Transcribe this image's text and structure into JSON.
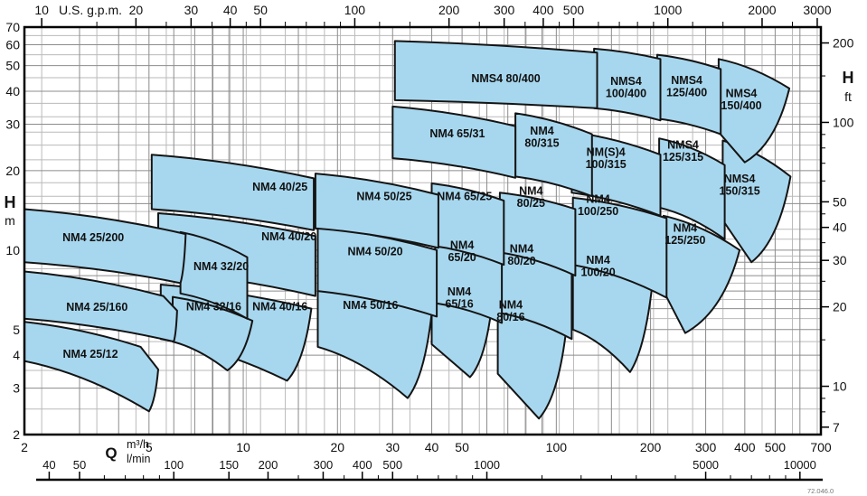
{
  "footer": {
    "doc_number": "72.046.0"
  },
  "chart_data": {
    "type": "area",
    "description": "Pump selection coverage chart, NM4 / NMS4 series, head H vs flow Q, log-log scales",
    "colors": {
      "region_fill": "#a7d7ee",
      "region_stroke": "#141414",
      "grid_light": "#bababa",
      "grid_med": "#8c8c8c",
      "frame": "#000000",
      "text": "#111111"
    },
    "axes": {
      "top_gpm": {
        "unit": "U.S. g.p.m.",
        "major": [
          10,
          20,
          30,
          40,
          50,
          100,
          200,
          300,
          400,
          500,
          1000,
          2000,
          3000
        ],
        "minor": [
          15,
          25,
          35,
          45,
          60,
          70,
          80,
          90,
          120,
          150,
          250,
          350,
          450,
          600,
          700,
          800,
          900,
          1200,
          1500,
          2500
        ],
        "gpm_to_m3h": 0.2271247
      },
      "left_m": {
        "unit_main": "H",
        "unit_sub": "m",
        "ticks": [
          70,
          60,
          50,
          40,
          30,
          20,
          10,
          5,
          4,
          3,
          2
        ],
        "range": [
          2,
          70
        ]
      },
      "right_ft": {
        "unit_main": "H",
        "unit_sub": "ft",
        "major": [
          200,
          100,
          50,
          40,
          30,
          20,
          10,
          7
        ],
        "minor": [
          150,
          90,
          80,
          70,
          60,
          45,
          35,
          25,
          15,
          9,
          8
        ],
        "ft_to_m": 0.3048
      },
      "bottom_m3h": {
        "unit_main": "Q",
        "unit_sub": "m³/h",
        "ticks": [
          2,
          5,
          10,
          20,
          30,
          40,
          50,
          100,
          200,
          300,
          400,
          500,
          700
        ],
        "range": [
          2,
          700
        ]
      },
      "bottom_lmin": {
        "unit": "l/min",
        "major": [
          40,
          50,
          100,
          150,
          200,
          300,
          400,
          500,
          1000,
          5000,
          10000
        ],
        "minor": [
          60,
          70,
          80,
          90,
          250,
          350,
          450,
          600,
          700,
          800,
          900,
          1500,
          2000,
          2500,
          3000,
          4000,
          6000,
          7000,
          8000,
          9000
        ],
        "lmin_to_m3h": 0.06
      }
    },
    "grid": {
      "x_m3h_med": [
        2,
        3,
        4,
        5,
        6,
        7,
        8,
        9,
        10,
        15,
        20,
        30,
        40,
        50,
        60,
        70,
        80,
        90,
        100,
        150,
        200,
        300,
        400,
        500,
        600,
        700
      ],
      "y_m_med": [
        2,
        3,
        4,
        5,
        6,
        7,
        8,
        9,
        10,
        15,
        20,
        30,
        40,
        50,
        60,
        70
      ],
      "y_m_light": [
        2.5,
        3.5,
        4.5,
        5.5,
        6.5,
        7.5,
        8.5,
        9.5,
        11,
        12,
        14,
        16,
        18,
        22,
        25,
        28,
        32,
        36,
        45,
        55,
        65
      ]
    },
    "regions": [
      {
        "label": "NMS4 150/315",
        "lines": [
          "NMS4",
          "150/315"
        ],
        "pts": [
          [
            340,
            26
          ],
          [
            560,
            19
          ],
          [
            420,
            9.0
          ],
          [
            340,
            13
          ]
        ],
        "label_pos": [
          385,
          17.7
        ]
      },
      {
        "label": "NMS4 150/400",
        "lines": [
          "NMS4",
          "150/400"
        ],
        "pts": [
          [
            330,
            53
          ],
          [
            555,
            41
          ],
          [
            400,
            21.5
          ],
          [
            330,
            28
          ]
        ],
        "label_pos": [
          390,
          37.2
        ]
      },
      {
        "label": "NM4 125/250",
        "lines": [
          "NM4",
          "125/250"
        ],
        "pts": [
          [
            220,
            13.5
          ],
          [
            385,
            10
          ],
          [
            258,
            4.85
          ],
          [
            220,
            7
          ]
        ],
        "label_pos": [
          258,
          11.5
        ]
      },
      {
        "label": "NMS4 125/315",
        "lines": [
          "NMS4",
          "125/315"
        ],
        "pts": [
          [
            213,
            26.5
          ],
          [
            345,
            21
          ],
          [
            345,
            11
          ],
          [
            213,
            14.5
          ]
        ],
        "label_pos": [
          254,
          23.8
        ]
      },
      {
        "label": "NMS4 125/400",
        "lines": [
          "NMS4",
          "125/400"
        ],
        "pts": [
          [
            210,
            55
          ],
          [
            335,
            48.5
          ],
          [
            335,
            27.5
          ],
          [
            210,
            31.5
          ]
        ],
        "label_pos": [
          261,
          41.8
        ]
      },
      {
        "label": "NM4 100/20",
        "lines": [
          "NM4",
          "100/20"
        ],
        "pts": [
          [
            113,
            9.8
          ],
          [
            205,
            8.5
          ],
          [
            172,
            3.45
          ],
          [
            113,
            5.0
          ]
        ],
        "label_pos": [
          136,
          8.7
        ]
      },
      {
        "label": "NM4 100/250",
        "lines": [
          "NM4",
          "100/250"
        ],
        "pts": [
          [
            113,
            15.8
          ],
          [
            225,
            13.2
          ],
          [
            225,
            6.6
          ],
          [
            113,
            8.8
          ]
        ],
        "label_pos": [
          136,
          14.8
        ]
      },
      {
        "label": "NM(S)4 100/315",
        "lines": [
          "NM(S)4",
          "100/315"
        ],
        "pts": [
          [
            112,
            28
          ],
          [
            215,
            23
          ],
          [
            215,
            13.5
          ],
          [
            112,
            16.5
          ]
        ],
        "label_pos": [
          144,
          22.3
        ]
      },
      {
        "label": "NMS4 100/400",
        "lines": [
          "NMS4",
          "100/400"
        ],
        "pts": [
          [
            132,
            58
          ],
          [
            215,
            53
          ],
          [
            215,
            31
          ],
          [
            132,
            34.5
          ]
        ],
        "label_pos": [
          167,
          41.5
        ]
      },
      {
        "label": "NM4 80/16",
        "lines": [
          "NM4",
          "80/16"
        ],
        "pts": [
          [
            65,
            6.0
          ],
          [
            107,
            4.75
          ],
          [
            88,
            2.3
          ],
          [
            65,
            3.4
          ]
        ],
        "label_pos": [
          71.5,
          5.9
        ]
      },
      {
        "label": "NM4 80/20",
        "lines": [
          "NM4",
          "80/20"
        ],
        "pts": [
          [
            65,
            10.7
          ],
          [
            112,
            9.3
          ],
          [
            112,
            4.6
          ],
          [
            65,
            5.8
          ]
        ],
        "label_pos": [
          77.5,
          9.6
        ]
      },
      {
        "label": "NM4 80/25",
        "lines": [
          "NM4",
          "80/25"
        ],
        "pts": [
          [
            66,
            16.5
          ],
          [
            115,
            14.3
          ],
          [
            115,
            8.0
          ],
          [
            66,
            9.8
          ]
        ],
        "label_pos": [
          83,
          15.9
        ]
      },
      {
        "label": "NM4 80/315",
        "lines": [
          "NM4",
          "80/315"
        ],
        "pts": [
          [
            74,
            33
          ],
          [
            130,
            27.5
          ],
          [
            130,
            16
          ],
          [
            74,
            19
          ]
        ],
        "label_pos": [
          90,
          26.9
        ]
      },
      {
        "label": "NMS4 80/400",
        "lines": [
          "NMS4 80/400"
        ],
        "pts": [
          [
            30.5,
            62
          ],
          [
            135,
            56
          ],
          [
            135,
            34.5
          ],
          [
            30.5,
            37
          ]
        ],
        "label_pos": [
          69,
          44.9
        ]
      },
      {
        "label": "NM4 65/16",
        "lines": [
          "NM4",
          "65/16"
        ],
        "pts": [
          [
            40,
            6.9
          ],
          [
            62,
            5.95
          ],
          [
            53,
            3.3
          ],
          [
            40,
            4.4
          ]
        ],
        "label_pos": [
          49,
          6.6
        ]
      },
      {
        "label": "NM4 65/20",
        "lines": [
          "NM4",
          "65/20"
        ],
        "pts": [
          [
            41,
            11.2
          ],
          [
            67,
            9.9
          ],
          [
            67,
            5.3
          ],
          [
            41,
            6.3
          ]
        ],
        "label_pos": [
          50,
          9.9
        ]
      },
      {
        "label": "NM4 65/25",
        "lines": [
          "NM4 65/25"
        ],
        "pts": [
          [
            40,
            17.9
          ],
          [
            68,
            15.4
          ],
          [
            68,
            8.8
          ],
          [
            40,
            10.4
          ]
        ],
        "label_pos": [
          50.9,
          16.0
        ]
      },
      {
        "label": "NM4 65/31",
        "lines": [
          "NM4 65/31"
        ],
        "pts": [
          [
            30,
            35
          ],
          [
            74,
            29.5
          ],
          [
            74,
            18.8
          ],
          [
            30,
            22.3
          ]
        ],
        "label_pos": [
          48.3,
          27.7
        ]
      },
      {
        "label": "NM4 50/16",
        "lines": [
          "NM4 50/16"
        ],
        "pts": [
          [
            17.3,
            7.2
          ],
          [
            40,
            5.75
          ],
          [
            33.5,
            2.75
          ],
          [
            17.3,
            4.3
          ]
        ],
        "label_pos": [
          25.5,
          6.2
        ]
      },
      {
        "label": "NM4 50/20",
        "lines": [
          "NM4 50/20"
        ],
        "pts": [
          [
            17.3,
            12.2
          ],
          [
            41.5,
            10.0
          ],
          [
            41.5,
            5.6
          ],
          [
            17.3,
            7.0
          ]
        ],
        "label_pos": [
          26.4,
          9.9
        ]
      },
      {
        "label": "NM4 50/25",
        "lines": [
          "NM4 50/25"
        ],
        "pts": [
          [
            17,
            19.5
          ],
          [
            42,
            16.2
          ],
          [
            42,
            10.2
          ],
          [
            17,
            12.1
          ]
        ],
        "label_pos": [
          28.2,
          16.0
        ]
      },
      {
        "label": "NM4 40/16",
        "lines": [
          "NM4 40/16"
        ],
        "pts": [
          [
            5.45,
            7.4
          ],
          [
            16.5,
            6.0
          ],
          [
            13.8,
            3.2
          ],
          [
            5.45,
            4.6
          ]
        ],
        "label_pos": [
          13.1,
          6.13
        ]
      },
      {
        "label": "NM4 40/20",
        "lines": [
          "NM4 40/20"
        ],
        "pts": [
          [
            5.35,
            13.8
          ],
          [
            17,
            11.3
          ],
          [
            17,
            6.7
          ],
          [
            5.35,
            8.3
          ]
        ],
        "label_pos": [
          14.0,
          11.3
        ]
      },
      {
        "label": "NM4 40/25",
        "lines": [
          "NM4 40/25"
        ],
        "pts": [
          [
            5.1,
            23
          ],
          [
            16.8,
            18.7
          ],
          [
            16.8,
            11.9
          ],
          [
            5.1,
            14.3
          ]
        ],
        "label_pos": [
          13.1,
          17.4
        ]
      },
      {
        "label": "NM4 32/16",
        "lines": [
          "NM4 32/16"
        ],
        "pts": [
          [
            5.95,
            6.65
          ],
          [
            10.7,
            5.4
          ],
          [
            8.9,
            3.5
          ],
          [
            5.95,
            4.5
          ]
        ],
        "label_pos": [
          8.05,
          6.13
        ]
      },
      {
        "label": "NM4 32/20",
        "lines": [
          "NM4 32/20"
        ],
        "pts": [
          [
            6.3,
            11.7
          ],
          [
            10.3,
            9.4
          ],
          [
            10.3,
            5.5
          ],
          [
            6.3,
            6.85
          ]
        ],
        "label_pos": [
          8.5,
          8.7
        ]
      },
      {
        "label": "NM4 25/12",
        "lines": [
          "NM4 25/12"
        ],
        "pts": [
          [
            2,
            5.35
          ],
          [
            4.7,
            4.3
          ],
          [
            5.35,
            3.53
          ],
          [
            5.0,
            2.45
          ],
          [
            2,
            3.8
          ]
        ],
        "label_pos": [
          3.25,
          4.05
        ]
      },
      {
        "label": "NM4 25/160",
        "lines": [
          "NM4 25/160"
        ],
        "pts": [
          [
            2,
            8.3
          ],
          [
            5.55,
            6.7
          ],
          [
            6.15,
            5.9
          ],
          [
            6.0,
            4.5
          ],
          [
            2,
            5.5
          ]
        ],
        "label_pos": [
          3.41,
          6.1
        ]
      },
      {
        "label": "NM4 25/200",
        "lines": [
          "NM4 25/200"
        ],
        "pts": [
          [
            2,
            14.3
          ],
          [
            6.55,
            11.5
          ],
          [
            6.3,
            7.5
          ],
          [
            2,
            9.0
          ]
        ],
        "label_pos": [
          3.32,
          11.2
        ]
      }
    ]
  }
}
